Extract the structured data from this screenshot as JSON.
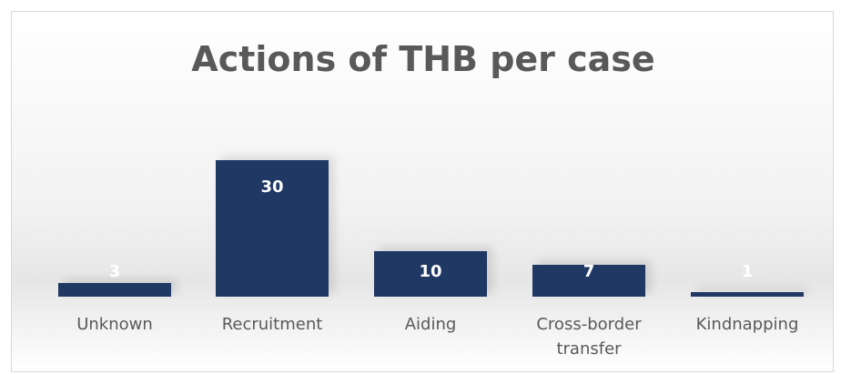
{
  "chart_data": {
    "type": "bar",
    "title": "Actions of THB per case",
    "categories": [
      "Unknown",
      "Recruitment",
      "Aiding",
      "Cross-border transfer",
      "Kindnapping"
    ],
    "values": [
      3,
      30,
      10,
      7,
      1
    ],
    "color": "#1f3864"
  }
}
